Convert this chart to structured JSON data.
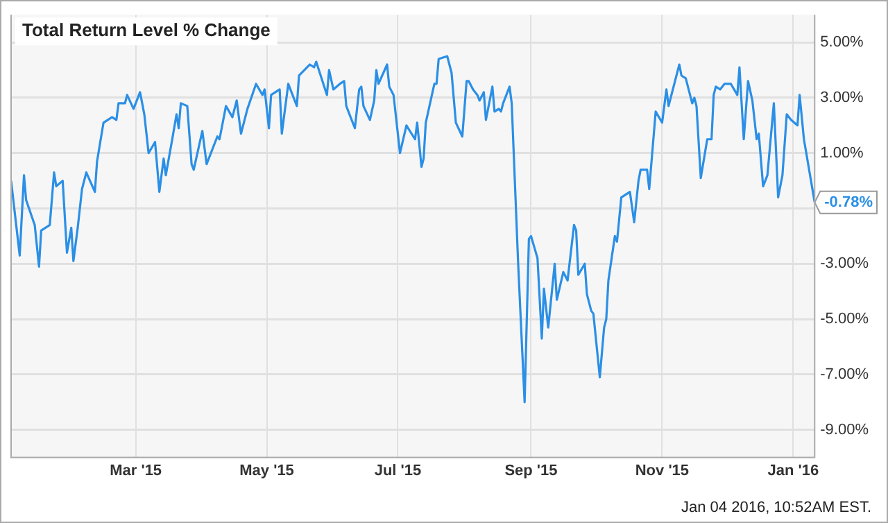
{
  "chart_data": {
    "type": "line",
    "title": "Total Return Level % Change",
    "x": [
      "2015-01-02",
      "2015-01-06",
      "2015-01-08",
      "2015-01-09",
      "2015-01-13",
      "2015-01-15",
      "2015-01-16",
      "2015-01-20",
      "2015-01-22",
      "2015-01-23",
      "2015-01-26",
      "2015-01-28",
      "2015-01-30",
      "2015-01-31",
      "2015-02-02",
      "2015-02-04",
      "2015-02-06",
      "2015-02-10",
      "2015-02-11",
      "2015-02-14",
      "2015-02-18",
      "2015-02-20",
      "2015-02-21",
      "2015-02-24",
      "2015-02-25",
      "2015-02-28",
      "2015-03-03",
      "2015-03-05",
      "2015-03-07",
      "2015-03-10",
      "2015-03-12",
      "2015-03-14",
      "2015-03-15",
      "2015-03-18",
      "2015-03-20",
      "2015-03-21",
      "2015-03-22",
      "2015-03-25",
      "2015-03-27",
      "2015-03-28",
      "2015-04-01",
      "2015-04-03",
      "2015-04-08",
      "2015-04-09",
      "2015-04-12",
      "2015-04-15",
      "2015-04-17",
      "2015-04-19",
      "2015-04-22",
      "2015-04-26",
      "2015-04-29",
      "2015-04-30",
      "2015-05-02",
      "2015-05-03",
      "2015-05-07",
      "2015-05-08",
      "2015-05-11",
      "2015-05-15",
      "2015-05-16",
      "2015-05-21",
      "2015-05-23",
      "2015-05-24",
      "2015-05-29",
      "2015-05-30",
      "2015-06-01",
      "2015-06-04",
      "2015-06-06",
      "2015-06-07",
      "2015-06-11",
      "2015-06-13",
      "2015-06-14",
      "2015-06-15",
      "2015-06-18",
      "2015-06-20",
      "2015-06-21",
      "2015-06-22",
      "2015-06-26",
      "2015-06-27",
      "2015-06-29",
      "2015-07-02",
      "2015-07-05",
      "2015-07-09",
      "2015-07-10",
      "2015-07-12",
      "2015-07-13",
      "2015-07-14",
      "2015-07-18",
      "2015-07-19",
      "2015-07-20",
      "2015-07-24",
      "2015-07-26",
      "2015-07-28",
      "2015-07-31",
      "2015-08-02",
      "2015-08-03",
      "2015-08-05",
      "2015-08-07",
      "2015-08-08",
      "2015-08-10",
      "2015-08-11",
      "2015-08-14",
      "2015-08-15",
      "2015-08-17",
      "2015-08-18",
      "2015-08-19",
      "2015-08-22",
      "2015-08-23",
      "2015-08-26",
      "2015-08-29",
      "2015-08-31",
      "2015-09-01",
      "2015-09-04",
      "2015-09-06",
      "2015-09-07",
      "2015-09-09",
      "2015-09-12",
      "2015-09-13",
      "2015-09-16",
      "2015-09-18",
      "2015-09-21",
      "2015-09-22",
      "2015-09-23",
      "2015-09-26",
      "2015-09-27",
      "2015-09-29",
      "2015-09-30",
      "2015-10-03",
      "2015-10-05",
      "2015-10-06",
      "2015-10-07",
      "2015-10-10",
      "2015-10-11",
      "2015-10-13",
      "2015-10-17",
      "2015-10-19",
      "2015-10-21",
      "2015-10-22",
      "2015-10-25",
      "2015-10-26",
      "2015-10-29",
      "2015-11-01",
      "2015-11-03",
      "2015-11-04",
      "2015-11-09",
      "2015-11-10",
      "2015-11-12",
      "2015-11-15",
      "2015-11-16",
      "2015-11-17",
      "2015-11-19",
      "2015-11-22",
      "2015-11-24",
      "2015-11-25",
      "2015-11-26",
      "2015-11-28",
      "2015-11-30",
      "2015-12-03",
      "2015-12-06",
      "2015-12-07",
      "2015-12-09",
      "2015-12-11",
      "2015-12-13",
      "2015-12-15",
      "2015-12-16",
      "2015-12-18",
      "2015-12-20",
      "2015-12-23",
      "2015-12-25",
      "2015-12-27",
      "2015-12-29",
      "2015-12-31",
      "2016-01-03",
      "2016-01-04",
      "2016-01-06",
      "2016-01-11"
    ],
    "series": [
      {
        "color": "#2b8fe6",
        "values": [
          0.0,
          -2.7,
          0.2,
          -0.7,
          -1.6,
          -3.1,
          -1.8,
          -1.6,
          0.3,
          -0.2,
          0.0,
          -2.6,
          -1.7,
          -2.9,
          -1.7,
          -0.3,
          0.3,
          -0.4,
          0.7,
          2.1,
          2.3,
          2.2,
          2.8,
          2.8,
          3.1,
          2.6,
          3.2,
          2.4,
          1.0,
          1.4,
          -0.4,
          0.8,
          0.2,
          1.5,
          2.4,
          1.9,
          2.8,
          2.7,
          0.6,
          0.4,
          1.8,
          0.6,
          1.6,
          1.5,
          2.7,
          2.3,
          2.9,
          1.7,
          2.6,
          3.5,
          3.1,
          3.3,
          1.9,
          3.1,
          3.3,
          1.7,
          3.5,
          2.7,
          3.8,
          4.2,
          4.1,
          4.3,
          3.1,
          4.0,
          3.3,
          3.5,
          3.6,
          2.7,
          1.9,
          3.3,
          3.4,
          2.7,
          2.2,
          2.9,
          4.0,
          3.5,
          4.2,
          3.4,
          3.1,
          1.0,
          2.0,
          1.5,
          2.1,
          0.5,
          0.8,
          2.1,
          3.5,
          3.5,
          4.4,
          4.5,
          3.9,
          2.1,
          1.6,
          3.6,
          3.6,
          3.3,
          3.1,
          2.9,
          3.2,
          2.2,
          3.4,
          2.5,
          2.6,
          2.5,
          2.8,
          3.4,
          2.8,
          -3.0,
          -8.0,
          -2.1,
          -2.0,
          -2.8,
          -5.7,
          -3.9,
          -5.3,
          -3.0,
          -4.3,
          -3.3,
          -3.6,
          -1.6,
          -1.8,
          -3.4,
          -3.0,
          -4.1,
          -4.7,
          -4.8,
          -7.1,
          -5.3,
          -5.0,
          -3.6,
          -2.0,
          -2.2,
          -0.6,
          -0.4,
          -1.5,
          0.0,
          0.4,
          0.4,
          -0.3,
          2.5,
          2.1,
          3.3,
          2.7,
          4.2,
          3.8,
          3.7,
          2.8,
          3.0,
          2.7,
          0.1,
          1.5,
          1.5,
          3.1,
          3.4,
          3.3,
          3.5,
          3.5,
          3.1,
          4.1,
          1.5,
          3.6,
          2.9,
          1.5,
          1.7,
          -0.2,
          0.2,
          2.8,
          -0.6,
          0.2,
          2.4,
          2.2,
          2.0,
          3.1,
          1.5,
          -0.78
        ],
        "value_labels": [
          null,
          null,
          null,
          null,
          null,
          null,
          null,
          null,
          null,
          null,
          null,
          null,
          null,
          null,
          null,
          null,
          null,
          null,
          null,
          null,
          null,
          null,
          null,
          null,
          null,
          null,
          null,
          null,
          null,
          null,
          null,
          null,
          null,
          null,
          null,
          null,
          null,
          null,
          null,
          null,
          null,
          null,
          null,
          null,
          null,
          null,
          null,
          null,
          null,
          null,
          null,
          null,
          null,
          null,
          null,
          null,
          null,
          null,
          null,
          null,
          null,
          null,
          null,
          null,
          null,
          null,
          null,
          null,
          null,
          null,
          null,
          null,
          null,
          null,
          null,
          null,
          null,
          null,
          null,
          null,
          null,
          null,
          null,
          null,
          null,
          null,
          null,
          null,
          null,
          null,
          null,
          null,
          null,
          null,
          null,
          null,
          null,
          null,
          null,
          null,
          null,
          null,
          null,
          null,
          null,
          null,
          null,
          null,
          null,
          null,
          null,
          null,
          null,
          null,
          null,
          null,
          null,
          null,
          null,
          null,
          null,
          null,
          null,
          null,
          null,
          null,
          null,
          null,
          null,
          null,
          null,
          null,
          null,
          null,
          null,
          null,
          null,
          null,
          null,
          null,
          null,
          null,
          null,
          null,
          null,
          null,
          null,
          null,
          null,
          null,
          null,
          null,
          null,
          null,
          null,
          null,
          null,
          null,
          null,
          null,
          null,
          null,
          null,
          null,
          null,
          null,
          null,
          null,
          null,
          null,
          null,
          null,
          null,
          null,
          "-0.78%"
        ]
      }
    ],
    "xlim": [
      "2015-01-02",
      "2016-01-11"
    ],
    "xticks": [
      {
        "value": "2015-03-01",
        "label": "Mar '15"
      },
      {
        "value": "2015-05-01",
        "label": "May '15"
      },
      {
        "value": "2015-07-01",
        "label": "Jul '15"
      },
      {
        "value": "2015-09-01",
        "label": "Sep '15"
      },
      {
        "value": "2015-11-01",
        "label": "Nov '15"
      },
      {
        "value": "2016-01-01",
        "label": "Jan '16"
      }
    ],
    "ylim": [
      -10,
      6
    ],
    "yticks": [
      {
        "value": 5,
        "label": "5.00%"
      },
      {
        "value": 3,
        "label": "3.00%"
      },
      {
        "value": 1,
        "label": "1.00%"
      },
      {
        "value": -1,
        "label": null
      },
      {
        "value": -3,
        "label": "-3.00%"
      },
      {
        "value": -5,
        "label": "-5.00%"
      },
      {
        "value": -7,
        "label": "-7.00%"
      },
      {
        "value": -9,
        "label": "-9.00%"
      }
    ],
    "grid": true,
    "marker": "none",
    "line_style": "solid",
    "legend": false,
    "annotations": [
      "Jan 04 2016, 10:52AM EST."
    ]
  }
}
